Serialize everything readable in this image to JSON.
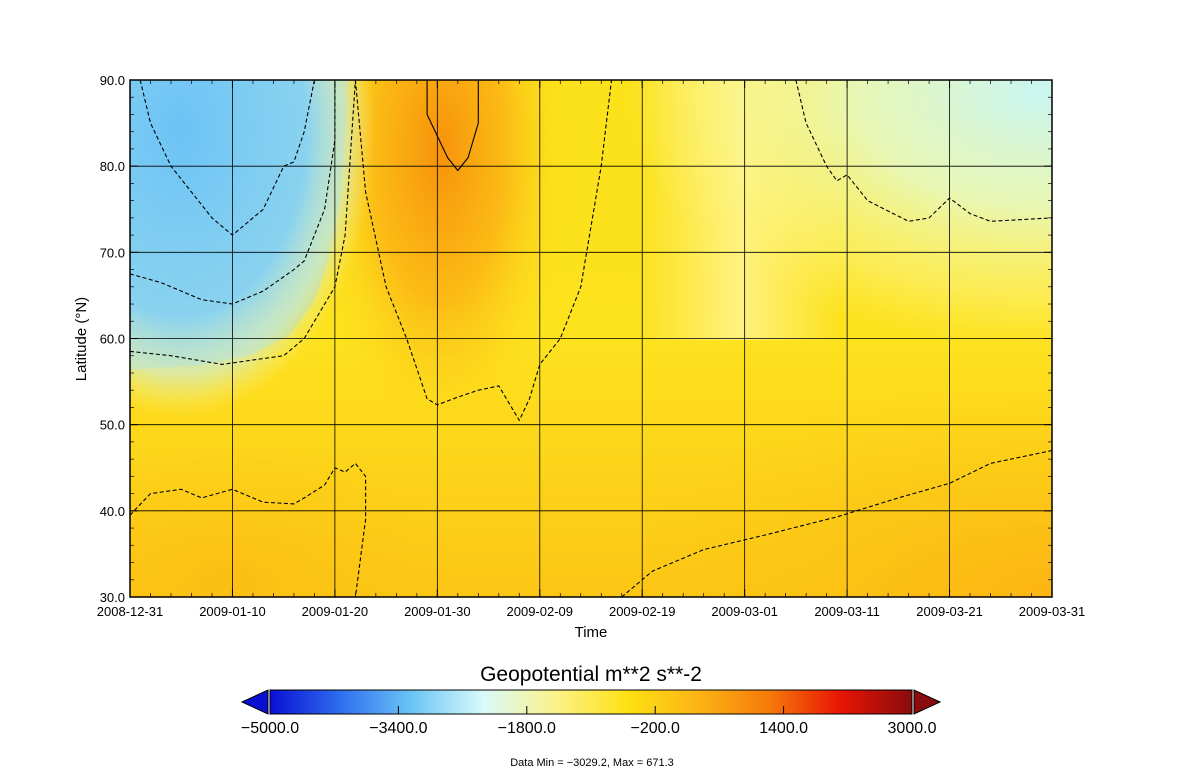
{
  "chart_data": {
    "type": "heatmap",
    "title": "",
    "xlabel": "Time",
    "ylabel": "Latitude (°N)",
    "x_range": [
      "2008-12-31",
      "2009-03-31"
    ],
    "x_ticks": [
      "2008-12-31",
      "2009-01-10",
      "2009-01-20",
      "2009-01-30",
      "2009-02-09",
      "2009-02-19",
      "2009-03-01",
      "2009-03-11",
      "2009-03-21",
      "2009-03-31"
    ],
    "y_range": [
      30,
      90
    ],
    "y_ticks": [
      "30.0",
      "40.0",
      "50.0",
      "60.0",
      "70.0",
      "80.0",
      "90.0"
    ],
    "grid": true,
    "colorbar": {
      "title": "Geopotential m**2 s**-2",
      "range": [
        -5000,
        3000
      ],
      "ticks": [
        "-5000.0",
        "-3400.0",
        "-1800.0",
        "-200.0",
        "1400.0",
        "3000.0"
      ],
      "colors": [
        "#0a10d2",
        "#2f6ff0",
        "#6cc6f5",
        "#d9fafa",
        "#fbf28a",
        "#fde114",
        "#fcb414",
        "#f67a0a",
        "#e81404",
        "#8a0c0c"
      ],
      "extend": "both"
    },
    "field_samples": [
      {
        "date": "2009-01-10",
        "lat": 80,
        "value": -2200
      },
      {
        "date": "2009-01-10",
        "lat": 65,
        "value": -1900
      },
      {
        "date": "2009-01-10",
        "lat": 35,
        "value": 200
      },
      {
        "date": "2009-01-30",
        "lat": 85,
        "value": 650
      },
      {
        "date": "2009-01-30",
        "lat": 60,
        "value": 300
      },
      {
        "date": "2009-02-19",
        "lat": 70,
        "value": -300
      },
      {
        "date": "2009-03-21",
        "lat": 85,
        "value": -1500
      },
      {
        "date": "2009-03-31",
        "lat": 40,
        "value": 150
      }
    ],
    "contour_lines": [
      {
        "style": "solid",
        "points": [
          [
            "2009-01-29",
            90
          ],
          [
            "2009-01-29",
            86
          ],
          [
            "2009-01-31",
            81
          ],
          [
            "2009-02-01",
            79.5
          ],
          [
            "2009-02-02",
            81
          ],
          [
            "2009-02-03",
            85
          ],
          [
            "2009-02-03",
            90
          ]
        ]
      },
      {
        "style": "dashed",
        "points": [
          [
            "2009-01-01",
            90
          ],
          [
            "2009-01-02",
            85
          ],
          [
            "2009-01-04",
            80
          ],
          [
            "2009-01-08",
            74
          ],
          [
            "2009-01-10",
            72
          ],
          [
            "2009-01-13",
            75
          ],
          [
            "2009-01-15",
            80
          ],
          [
            "2009-01-16",
            80.5
          ],
          [
            "2009-01-17",
            84
          ],
          [
            "2009-01-18",
            90
          ]
        ]
      },
      {
        "style": "dashed",
        "points": [
          [
            "2008-12-31",
            67.5
          ],
          [
            "2009-01-03",
            66.5
          ],
          [
            "2009-01-07",
            64.5
          ],
          [
            "2009-01-10",
            64
          ],
          [
            "2009-01-13",
            65.5
          ],
          [
            "2009-01-16",
            68
          ],
          [
            "2009-01-17",
            69
          ],
          [
            "2009-01-19",
            75
          ],
          [
            "2009-01-20",
            83
          ],
          [
            "2009-01-20",
            90
          ]
        ]
      },
      {
        "style": "dashed",
        "points": [
          [
            "2008-12-31",
            58.5
          ],
          [
            "2009-01-04",
            58
          ],
          [
            "2009-01-09",
            57
          ],
          [
            "2009-01-12",
            57.5
          ],
          [
            "2009-01-15",
            58
          ],
          [
            "2009-01-17",
            60
          ],
          [
            "2009-01-18",
            62
          ],
          [
            "2009-01-20",
            66
          ],
          [
            "2009-01-21",
            72
          ],
          [
            "2009-01-22",
            90
          ]
        ]
      },
      {
        "style": "dashed",
        "points": [
          [
            "2009-01-22",
            90
          ],
          [
            "2009-01-23",
            77
          ],
          [
            "2009-01-25",
            66
          ],
          [
            "2009-01-27",
            60
          ],
          [
            "2009-01-29",
            53
          ],
          [
            "2009-01-30",
            52.3
          ],
          [
            "2009-02-01",
            53.2
          ],
          [
            "2009-02-03",
            54
          ],
          [
            "2009-02-05",
            54.5
          ],
          [
            "2009-02-07",
            50.5
          ],
          [
            "2009-02-08",
            53
          ],
          [
            "2009-02-09",
            57
          ],
          [
            "2009-02-11",
            60
          ],
          [
            "2009-02-13",
            66
          ],
          [
            "2009-02-15",
            80
          ],
          [
            "2009-02-16",
            90
          ]
        ]
      },
      {
        "style": "dashed",
        "points": [
          [
            "2008-12-31",
            39.5
          ],
          [
            "2009-01-02",
            42
          ],
          [
            "2009-01-05",
            42.5
          ],
          [
            "2009-01-07",
            41.5
          ],
          [
            "2009-01-10",
            42.5
          ],
          [
            "2009-01-13",
            41
          ],
          [
            "2009-01-16",
            40.8
          ],
          [
            "2009-01-17",
            41.5
          ],
          [
            "2009-01-19",
            43
          ],
          [
            "2009-01-20",
            45
          ],
          [
            "2009-01-21",
            44.5
          ],
          [
            "2009-01-22",
            45.5
          ],
          [
            "2009-01-23",
            44
          ],
          [
            "2009-01-23",
            39
          ],
          [
            "2009-01-22",
            30
          ]
        ]
      },
      {
        "style": "dashed",
        "points": [
          [
            "2009-02-17",
            30
          ],
          [
            "2009-02-20",
            33
          ],
          [
            "2009-02-25",
            35.5
          ],
          [
            "2009-03-03",
            37.2
          ],
          [
            "2009-03-10",
            39.3
          ],
          [
            "2009-03-16",
            41.5
          ],
          [
            "2009-03-21",
            43.2
          ],
          [
            "2009-03-25",
            45.5
          ],
          [
            "2009-03-31",
            47
          ]
        ]
      },
      {
        "style": "dashed",
        "points": [
          [
            "2009-03-06",
            90
          ],
          [
            "2009-03-07",
            85
          ],
          [
            "2009-03-09",
            80
          ],
          [
            "2009-03-10",
            78.3
          ],
          [
            "2009-03-11",
            79
          ],
          [
            "2009-03-13",
            76
          ],
          [
            "2009-03-15",
            74.8
          ],
          [
            "2009-03-17",
            73.6
          ],
          [
            "2009-03-19",
            74
          ],
          [
            "2009-03-21",
            76.3
          ],
          [
            "2009-03-23",
            74.5
          ],
          [
            "2009-03-25",
            73.6
          ],
          [
            "2009-03-31",
            74
          ]
        ]
      }
    ],
    "footnote": "Data Min = −3029.2, Max = 671.3"
  }
}
